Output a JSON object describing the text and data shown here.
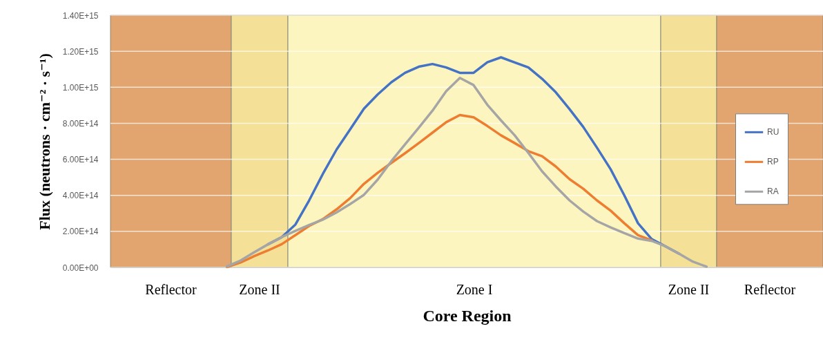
{
  "chart_data": {
    "type": "line",
    "xlabel": "Core Region",
    "ylabel": "Flux (neutrons · cm⁻² · s⁻¹)",
    "categories": [
      null,
      null,
      null,
      null,
      null,
      null,
      null,
      null,
      null,
      null,
      null,
      null,
      null,
      null,
      null,
      null,
      null,
      null,
      null,
      null,
      null,
      null,
      null,
      null,
      null,
      null,
      null,
      null,
      null,
      null,
      null,
      null,
      null,
      null,
      null,
      null,
      null,
      null,
      null,
      null,
      null,
      null,
      null,
      null,
      null,
      null,
      null,
      null,
      null,
      null,
      null,
      null
    ],
    "ylim": [
      0,
      1400000000000000.0
    ],
    "tick_labels": "y",
    "yticks": [
      {
        "value": 0,
        "label": "0.00E+00"
      },
      {
        "value": 200000000000000.0,
        "label": "2.00E+14"
      },
      {
        "value": 400000000000000.0,
        "label": "4.00E+14"
      },
      {
        "value": 600000000000000.0,
        "label": "6.00E+14"
      },
      {
        "value": 800000000000000.0,
        "label": "8.00E+14"
      },
      {
        "value": 1000000000000000.0,
        "label": "1.00E+15"
      },
      {
        "value": 1200000000000000.0,
        "label": "1.20E+15"
      },
      {
        "value": 1400000000000000.0,
        "label": "1.40E+15"
      }
    ],
    "grid": "y",
    "legend": "right",
    "series": [
      {
        "name": "RU",
        "color": "#4472c4",
        "values": [
          null,
          null,
          null,
          null,
          null,
          null,
          null,
          null,
          null,
          null,
          null,
          128000000000000.0,
          168000000000000.0,
          238000000000000.0,
          372000000000000.0,
          519000000000000.0,
          654000000000000.0,
          767000000000000.0,
          881000000000000.0,
          960000000000000.0,
          1028000000000000.0,
          1080000000000000.0,
          1114000000000000.0,
          1129000000000000.0,
          1110000000000000.0,
          1080000000000000.0,
          1080000000000000.0,
          1139000000000000.0,
          1166000000000000.0,
          1138000000000000.0,
          1110000000000000.0,
          1047000000000000.0,
          972000000000000.0,
          879000000000000.0,
          780000000000000.0,
          665000000000000.0,
          545000000000000.0,
          400000000000000.0,
          245000000000000.0,
          157000000000000.0,
          117000000000000.0,
          76000000000000.0,
          null,
          null,
          null,
          null,
          null,
          null,
          null,
          null,
          null,
          null
        ]
      },
      {
        "name": "RP",
        "color": "#ed7d31",
        "values": [
          null,
          null,
          null,
          null,
          null,
          null,
          null,
          null,
          2000000000000.0,
          27000000000000.0,
          63000000000000.0,
          94000000000000.0,
          129000000000000.0,
          179000000000000.0,
          230000000000000.0,
          268000000000000.0,
          322000000000000.0,
          385000000000000.0,
          464000000000000.0,
          525000000000000.0,
          580000000000000.0,
          634000000000000.0,
          690000000000000.0,
          748000000000000.0,
          806000000000000.0,
          846000000000000.0,
          833000000000000.0,
          785000000000000.0,
          733000000000000.0,
          690000000000000.0,
          645000000000000.0,
          617000000000000.0,
          560000000000000.0,
          490000000000000.0,
          437000000000000.0,
          372000000000000.0,
          315000000000000.0,
          245000000000000.0,
          179000000000000.0,
          150000000000000.0,
          null,
          null,
          null,
          null,
          null,
          null,
          null,
          null,
          null,
          null,
          null,
          null
        ]
      },
      {
        "name": "RA",
        "color": "#a5a5a5",
        "values": [
          null,
          null,
          null,
          null,
          null,
          null,
          null,
          null,
          5000000000000.0,
          38000000000000.0,
          84000000000000.0,
          128000000000000.0,
          168000000000000.0,
          203000000000000.0,
          235000000000000.0,
          265000000000000.0,
          305000000000000.0,
          352000000000000.0,
          403000000000000.0,
          487000000000000.0,
          590000000000000.0,
          683000000000000.0,
          775000000000000.0,
          870000000000000.0,
          978000000000000.0,
          1052000000000000.0,
          1012000000000000.0,
          903000000000000.0,
          816000000000000.0,
          733000000000000.0,
          635000000000000.0,
          533000000000000.0,
          449000000000000.0,
          372000000000000.0,
          310000000000000.0,
          257000000000000.0,
          222000000000000.0,
          190000000000000.0,
          160000000000000.0,
          147000000000000.0,
          117000000000000.0,
          76000000000000.0,
          32000000000000.0,
          4000000000000.0,
          null,
          null,
          null,
          null,
          null,
          null,
          null,
          null
        ]
      }
    ],
    "annotations": [
      "Reflector",
      "Zone II",
      "Zone I",
      "Zone II",
      "Reflector"
    ]
  }
}
